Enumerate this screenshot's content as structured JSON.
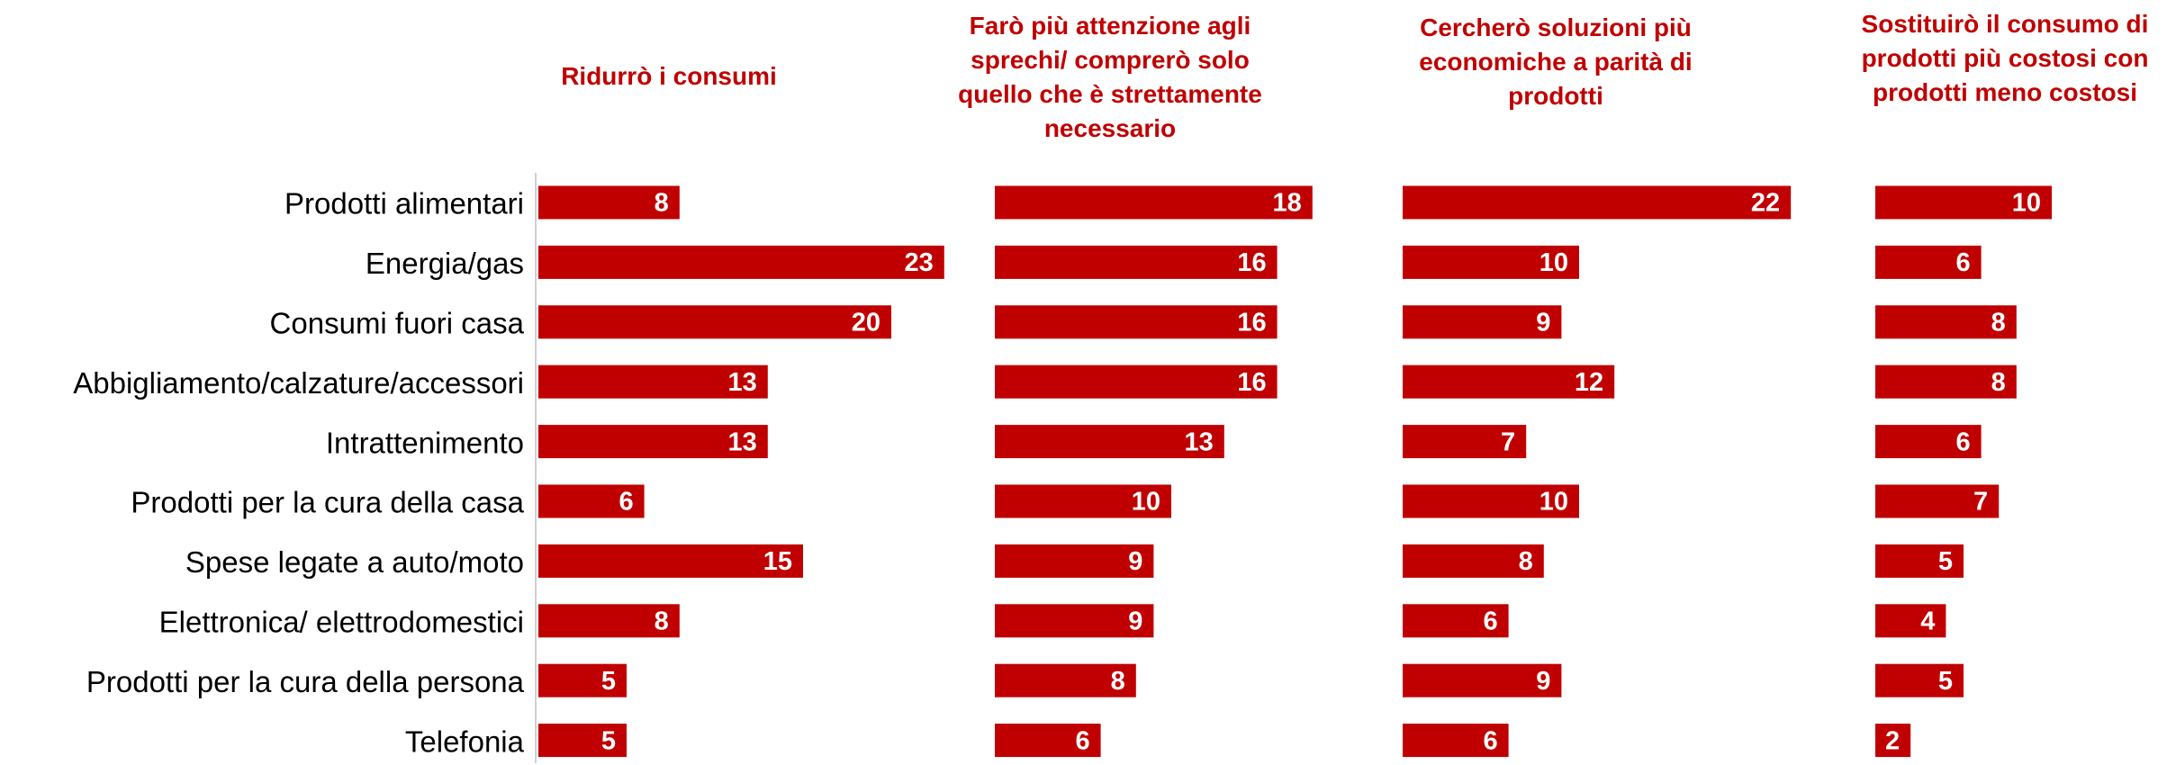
{
  "chart_data": {
    "type": "bar",
    "orientation": "horizontal",
    "color": "#c00000",
    "categories": [
      "Prodotti alimentari",
      "Energia/gas",
      "Consumi fuori casa",
      "Abbigliamento/calzature/accessori",
      "Intrattenimento",
      "Prodotti per la cura della casa",
      "Spese legate a auto/moto",
      "Elettronica/ elettrodomestici",
      "Prodotti per la cura della persona",
      "Telefonia"
    ],
    "series": [
      {
        "name": "Ridurrò i consumi",
        "color": "#c00000",
        "values": [
          8,
          23,
          20,
          13,
          13,
          6,
          15,
          8,
          5,
          5
        ]
      },
      {
        "name": "Farò più attenzione agli sprechi/ comprerò solo quello che è strettamente necessario",
        "color": "#c00000",
        "values": [
          18,
          16,
          16,
          16,
          13,
          10,
          9,
          9,
          8,
          6
        ]
      },
      {
        "name": "Cercherò soluzioni più economiche a parità di prodotti",
        "color": "#c00000",
        "values": [
          22,
          10,
          9,
          12,
          7,
          10,
          8,
          6,
          9,
          6
        ]
      },
      {
        "name": "Sostituirò il consumo di prodotti più costosi con prodotti meno costosi",
        "color": "#c00000",
        "values": [
          10,
          6,
          8,
          8,
          6,
          7,
          5,
          4,
          5,
          2
        ]
      }
    ]
  }
}
